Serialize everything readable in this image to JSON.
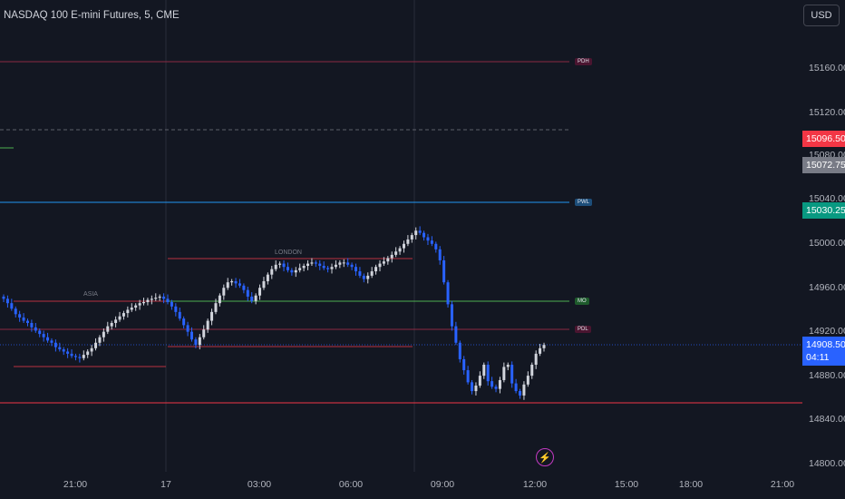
{
  "header": {
    "title": "NASDAQ 100 E-mini Futures, 5, CME",
    "currency_button": "USD"
  },
  "price_axis": {
    "ticks": [
      "15160.00",
      "15120.00",
      "15080.00",
      "15040.00",
      "15000.00",
      "14960.00",
      "14920.00",
      "14880.00",
      "14840.00",
      "14800.00"
    ],
    "labels": {
      "red": "15096.50",
      "gray": "15072.75",
      "green": "15030.25",
      "current": "14908.50",
      "countdown": "04:11"
    }
  },
  "time_axis": {
    "ticks": [
      "21:00",
      "17",
      "03:00",
      "06:00",
      "09:00",
      "12:00",
      "15:00",
      "18:00",
      "21:00"
    ]
  },
  "levels": {
    "pdh": "PDH",
    "pwl": "PWL",
    "mo": "MO",
    "pdl": "PDL"
  },
  "sessions": {
    "asia": "ASIA",
    "london": "LONDON"
  },
  "colors": {
    "background": "#131722",
    "up_candle": "#d1d4dc",
    "down_candle": "#2962ff",
    "red_line": "#f23645",
    "green_line": "#4caf50",
    "blue_line": "#2196f3"
  },
  "icons": {
    "bolt": "lightning-bolt-icon"
  },
  "chart_data": {
    "type": "candlestick",
    "y_unit": "price",
    "ylim": [
      14790,
      15190
    ],
    "closes": [
      14950,
      14946,
      14941,
      14936,
      14933,
      14930,
      14928,
      14924,
      14921,
      14918,
      14915,
      14912,
      14910,
      14906,
      14904,
      14902,
      14900,
      14898,
      14897,
      14896,
      14899,
      14902,
      14905,
      14910,
      14915,
      14920,
      14925,
      14928,
      14931,
      14934,
      14937,
      14940,
      14942,
      14944,
      14946,
      14947,
      14949,
      14950,
      14951,
      14952,
      14950,
      14947,
      14943,
      14938,
      14932,
      14926,
      14920,
      14913,
      14908,
      14915,
      14922,
      14930,
      14938,
      14946,
      14953,
      14960,
      14965,
      14966,
      14964,
      14962,
      14958,
      14952,
      14948,
      14953,
      14960,
      14966,
      14972,
      14977,
      14981,
      14982,
      14979,
      14976,
      14974,
      14976,
      14978,
      14980,
      14982,
      14983,
      14982,
      14980,
      14978,
      14977,
      14979,
      14981,
      14983,
      14983,
      14981,
      14979,
      14975,
      14971,
      14968,
      14971,
      14975,
      14979,
      14982,
      14984,
      14987,
      14990,
      14993,
      14996,
      15000,
      15004,
      15008,
      15012,
      15010,
      15006,
      15003,
      15000,
      14995,
      14985,
      14965,
      14945,
      14925,
      14910,
      14895,
      14885,
      14874,
      14866,
      14871,
      14880,
      14890,
      14875,
      14870,
      14868,
      14876,
      14888,
      14890,
      14873,
      14866,
      14862,
      14872,
      14880,
      14890,
      14900,
      14905,
      14908
    ]
  }
}
